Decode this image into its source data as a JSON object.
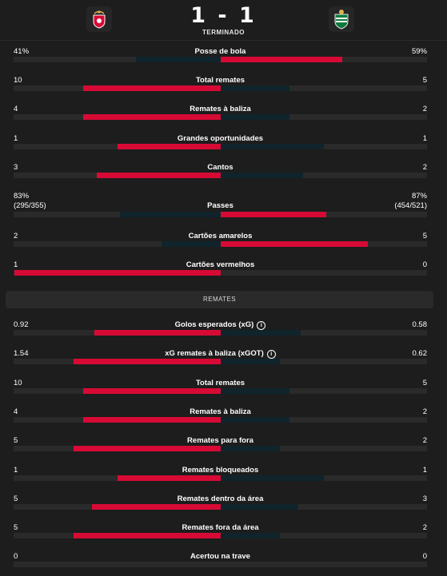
{
  "match": {
    "score": "1 - 1",
    "status": "TERMINADO",
    "home_logo": "benfica-crest-icon",
    "away_logo": "sporting-crest-icon"
  },
  "colors": {
    "win": "#d70a35",
    "lose": "#10242c",
    "track": "#2a2a2a"
  },
  "section_title": "REMATES",
  "general": [
    {
      "label": "Posse de bola",
      "left": "41%",
      "right": "59%",
      "left_value": 41,
      "right_value": 59
    },
    {
      "label": "Total remates",
      "left": "10",
      "right": "5",
      "left_value": 10,
      "right_value": 5
    },
    {
      "label": "Remates à baliza",
      "left": "4",
      "right": "2",
      "left_value": 4,
      "right_value": 2
    },
    {
      "label": "Grandes oportunidades",
      "left": "1",
      "right": "1",
      "left_value": 1,
      "right_value": 1
    },
    {
      "label": "Cantos",
      "left": "3",
      "right": "2",
      "left_value": 3,
      "right_value": 2
    },
    {
      "label": "Passes",
      "left": "83%",
      "right": "87%",
      "left_sub": "(295/355)",
      "right_sub": "(454/521)",
      "left_value": 83,
      "right_value": 87
    },
    {
      "label": "Cartões amarelos",
      "left": "2",
      "right": "5",
      "left_value": 2,
      "right_value": 5
    },
    {
      "label": "Cartões vermelhos",
      "left": "1",
      "right": "0",
      "left_value": 1,
      "right_value": 0
    }
  ],
  "shots": [
    {
      "label": "Golos esperados (xG)",
      "info": true,
      "left": "0.92",
      "right": "0.58",
      "left_value": 0.92,
      "right_value": 0.58
    },
    {
      "label": "xG remates à baliza (xGOT)",
      "info": true,
      "left": "1.54",
      "right": "0.62",
      "left_value": 1.54,
      "right_value": 0.62
    },
    {
      "label": "Total remates",
      "left": "10",
      "right": "5",
      "left_value": 10,
      "right_value": 5
    },
    {
      "label": "Remates à baliza",
      "left": "4",
      "right": "2",
      "left_value": 4,
      "right_value": 2
    },
    {
      "label": "Remates para fora",
      "left": "5",
      "right": "2",
      "left_value": 5,
      "right_value": 2
    },
    {
      "label": "Remates bloqueados",
      "left": "1",
      "right": "1",
      "left_value": 1,
      "right_value": 1
    },
    {
      "label": "Remates dentro da área",
      "left": "5",
      "right": "3",
      "left_value": 5,
      "right_value": 3
    },
    {
      "label": "Remates fora da área",
      "left": "5",
      "right": "2",
      "left_value": 5,
      "right_value": 2
    },
    {
      "label": "Acertou na trave",
      "left": "0",
      "right": "0",
      "left_value": 0,
      "right_value": 0
    }
  ]
}
